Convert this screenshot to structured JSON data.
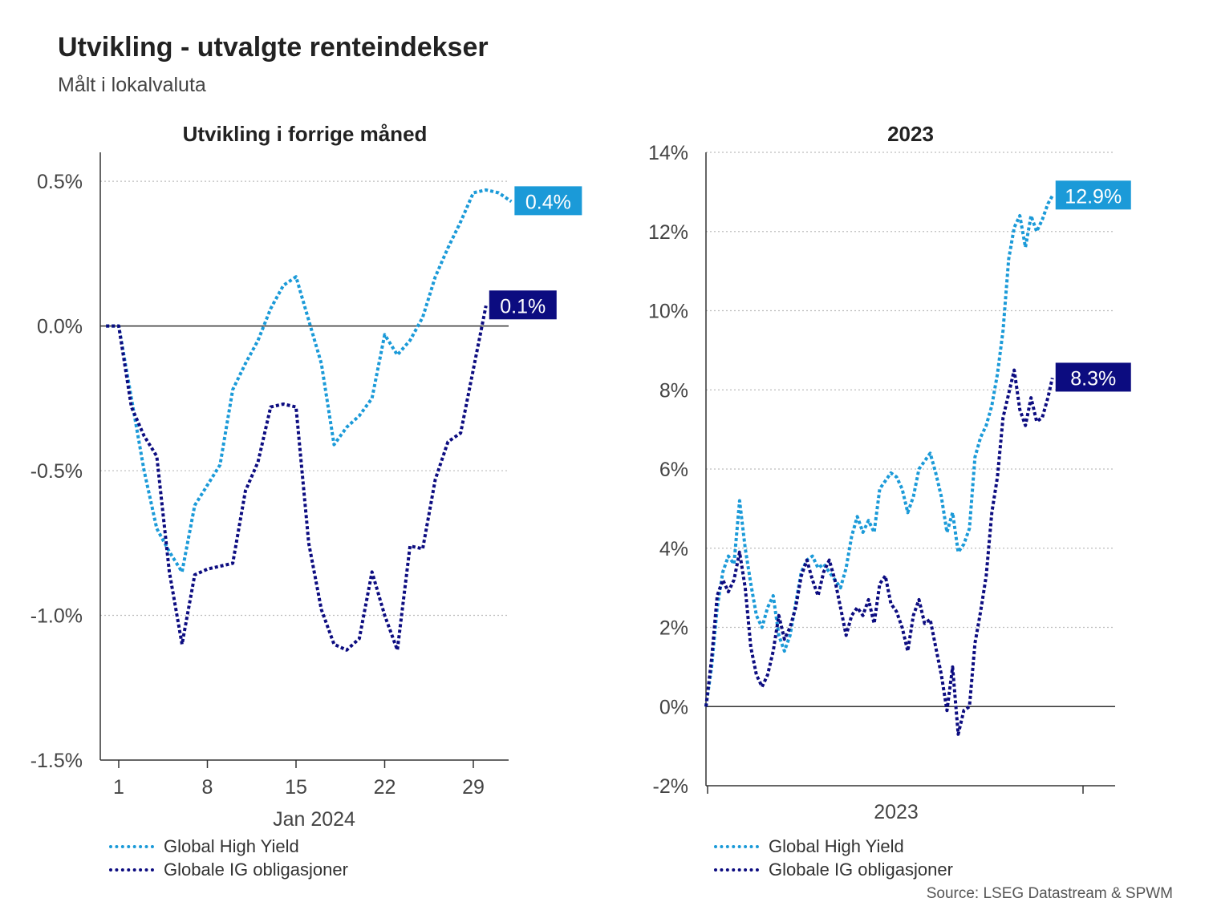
{
  "title": "Utvikling - utvalgte renteindekser",
  "subtitle": "Målt i lokalvaluta",
  "source": "Source: LSEG Datastream & SPWM",
  "colors": {
    "high_yield": "#1b9ad8",
    "ig": "#0c0c80",
    "axis": "#333333",
    "grid": "#bdbdbd"
  },
  "legend": {
    "high_yield": "Global High Yield",
    "ig": "Globale IG obligasjoner"
  },
  "chart_data": [
    {
      "type": "line",
      "title": "Utvikling i forrige måned",
      "xlabel": "Jan 2024",
      "x_ticks": [
        1,
        8,
        15,
        22,
        29
      ],
      "xlim": [
        -0.5,
        32.5
      ],
      "ylim": [
        -1.5,
        0.6
      ],
      "y_ticks": [
        "0.5%",
        "0.0%",
        "-0.5%",
        "-1.0%",
        "-1.5%"
      ],
      "y_tick_values": [
        0.5,
        0.0,
        -0.5,
        -1.0,
        -1.5
      ],
      "grid": true,
      "end_labels": [
        "0.4%",
        "0.1%"
      ],
      "series": [
        {
          "name": "Global High Yield",
          "points": [
            [
              0,
              0.0
            ],
            [
              1,
              0.0
            ],
            [
              2,
              -0.25
            ],
            [
              3,
              -0.5
            ],
            [
              4,
              -0.7
            ],
            [
              5,
              -0.78
            ],
            [
              6,
              -0.85
            ],
            [
              7,
              -0.62
            ],
            [
              8,
              -0.55
            ],
            [
              9,
              -0.48
            ],
            [
              10,
              -0.22
            ],
            [
              11,
              -0.13
            ],
            [
              12,
              -0.05
            ],
            [
              13,
              0.06
            ],
            [
              14,
              0.14
            ],
            [
              15,
              0.17
            ],
            [
              16,
              0.02
            ],
            [
              17,
              -0.13
            ],
            [
              18,
              -0.41
            ],
            [
              19,
              -0.35
            ],
            [
              20,
              -0.31
            ],
            [
              21,
              -0.25
            ],
            [
              22,
              -0.03
            ],
            [
              23,
              -0.1
            ],
            [
              24,
              -0.05
            ],
            [
              25,
              0.03
            ],
            [
              26,
              0.17
            ],
            [
              27,
              0.27
            ],
            [
              28,
              0.36
            ],
            [
              29,
              0.46
            ],
            [
              30,
              0.47
            ],
            [
              31,
              0.46
            ],
            [
              32,
              0.43
            ]
          ]
        },
        {
          "name": "Globale IG obligasjoner",
          "points": [
            [
              0,
              0.0
            ],
            [
              1,
              0.0
            ],
            [
              2,
              -0.28
            ],
            [
              3,
              -0.38
            ],
            [
              4,
              -0.45
            ],
            [
              5,
              -0.85
            ],
            [
              6,
              -1.1
            ],
            [
              7,
              -0.86
            ],
            [
              8,
              -0.84
            ],
            [
              9,
              -0.83
            ],
            [
              10,
              -0.82
            ],
            [
              11,
              -0.57
            ],
            [
              12,
              -0.47
            ],
            [
              13,
              -0.28
            ],
            [
              14,
              -0.27
            ],
            [
              15,
              -0.28
            ],
            [
              16,
              -0.75
            ],
            [
              17,
              -0.98
            ],
            [
              18,
              -1.1
            ],
            [
              19,
              -1.12
            ],
            [
              20,
              -1.08
            ],
            [
              21,
              -0.85
            ],
            [
              22,
              -1.0
            ],
            [
              23,
              -1.12
            ],
            [
              24,
              -0.76
            ],
            [
              25,
              -0.77
            ],
            [
              26,
              -0.53
            ],
            [
              27,
              -0.4
            ],
            [
              28,
              -0.37
            ],
            [
              29,
              -0.15
            ],
            [
              30,
              0.07
            ]
          ]
        }
      ]
    },
    {
      "type": "line",
      "title": "2023",
      "xlabel": "2023",
      "xlim": [
        0,
        365
      ],
      "ylim": [
        -2,
        14
      ],
      "y_ticks": [
        "14%",
        "12%",
        "10%",
        "8%",
        "6%",
        "4%",
        "2%",
        "0%",
        "-2%"
      ],
      "y_tick_values": [
        14,
        12,
        10,
        8,
        6,
        4,
        2,
        0,
        -2
      ],
      "grid": true,
      "end_labels": [
        "12.9%",
        "8.3%"
      ],
      "series": [
        {
          "name": "Global High Yield",
          "points": [
            [
              0,
              0.0
            ],
            [
              5,
              1.0
            ],
            [
              10,
              2.5
            ],
            [
              15,
              3.4
            ],
            [
              20,
              3.8
            ],
            [
              25,
              3.6
            ],
            [
              30,
              5.2
            ],
            [
              35,
              4.0
            ],
            [
              40,
              3.1
            ],
            [
              45,
              2.3
            ],
            [
              50,
              2.0
            ],
            [
              55,
              2.5
            ],
            [
              60,
              2.8
            ],
            [
              65,
              1.8
            ],
            [
              70,
              1.4
            ],
            [
              75,
              1.8
            ],
            [
              80,
              2.6
            ],
            [
              85,
              3.4
            ],
            [
              90,
              3.7
            ],
            [
              95,
              3.8
            ],
            [
              100,
              3.5
            ],
            [
              105,
              3.6
            ],
            [
              110,
              3.4
            ],
            [
              115,
              3.2
            ],
            [
              120,
              3.0
            ],
            [
              125,
              3.5
            ],
            [
              130,
              4.3
            ],
            [
              135,
              4.8
            ],
            [
              140,
              4.4
            ],
            [
              145,
              4.7
            ],
            [
              150,
              4.4
            ],
            [
              155,
              5.5
            ],
            [
              160,
              5.7
            ],
            [
              165,
              5.9
            ],
            [
              170,
              5.8
            ],
            [
              175,
              5.5
            ],
            [
              180,
              4.9
            ],
            [
              185,
              5.3
            ],
            [
              190,
              6.0
            ],
            [
              195,
              6.2
            ],
            [
              200,
              6.4
            ],
            [
              205,
              5.9
            ],
            [
              210,
              5.3
            ],
            [
              215,
              4.4
            ],
            [
              220,
              4.9
            ],
            [
              225,
              3.9
            ],
            [
              230,
              4.1
            ],
            [
              235,
              4.5
            ],
            [
              240,
              6.3
            ],
            [
              245,
              6.8
            ],
            [
              250,
              7.1
            ],
            [
              255,
              7.6
            ],
            [
              260,
              8.4
            ],
            [
              265,
              9.5
            ],
            [
              270,
              11.3
            ],
            [
              275,
              12.1
            ],
            [
              280,
              12.4
            ],
            [
              285,
              11.6
            ],
            [
              290,
              12.4
            ],
            [
              295,
              12.0
            ],
            [
              300,
              12.3
            ],
            [
              305,
              12.7
            ],
            [
              309,
              12.9
            ]
          ]
        },
        {
          "name": "Globale IG obligasjoner",
          "points": [
            [
              0,
              0.0
            ],
            [
              5,
              1.2
            ],
            [
              10,
              2.8
            ],
            [
              15,
              3.2
            ],
            [
              20,
              2.9
            ],
            [
              25,
              3.2
            ],
            [
              30,
              3.9
            ],
            [
              35,
              3.0
            ],
            [
              40,
              1.5
            ],
            [
              45,
              0.8
            ],
            [
              50,
              0.5
            ],
            [
              55,
              0.8
            ],
            [
              60,
              1.4
            ],
            [
              65,
              2.3
            ],
            [
              70,
              1.7
            ],
            [
              75,
              2.0
            ],
            [
              80,
              2.5
            ],
            [
              85,
              3.3
            ],
            [
              90,
              3.7
            ],
            [
              95,
              3.2
            ],
            [
              100,
              2.8
            ],
            [
              105,
              3.4
            ],
            [
              110,
              3.7
            ],
            [
              115,
              3.2
            ],
            [
              120,
              2.5
            ],
            [
              125,
              1.8
            ],
            [
              130,
              2.3
            ],
            [
              135,
              2.5
            ],
            [
              140,
              2.3
            ],
            [
              145,
              2.7
            ],
            [
              150,
              2.1
            ],
            [
              155,
              3.1
            ],
            [
              160,
              3.3
            ],
            [
              165,
              2.6
            ],
            [
              170,
              2.4
            ],
            [
              175,
              2.0
            ],
            [
              180,
              1.4
            ],
            [
              185,
              2.3
            ],
            [
              190,
              2.7
            ],
            [
              195,
              2.1
            ],
            [
              200,
              2.2
            ],
            [
              205,
              1.5
            ],
            [
              210,
              0.8
            ],
            [
              215,
              -0.1
            ],
            [
              220,
              1.0
            ],
            [
              225,
              -0.7
            ],
            [
              230,
              -0.1
            ],
            [
              235,
              0.0
            ],
            [
              240,
              1.6
            ],
            [
              245,
              2.4
            ],
            [
              250,
              3.3
            ],
            [
              255,
              4.9
            ],
            [
              260,
              5.8
            ],
            [
              265,
              7.3
            ],
            [
              270,
              7.9
            ],
            [
              275,
              8.5
            ],
            [
              280,
              7.5
            ],
            [
              285,
              7.1
            ],
            [
              290,
              7.8
            ],
            [
              295,
              7.2
            ],
            [
              300,
              7.3
            ],
            [
              305,
              7.8
            ],
            [
              309,
              8.3
            ]
          ]
        }
      ]
    }
  ]
}
